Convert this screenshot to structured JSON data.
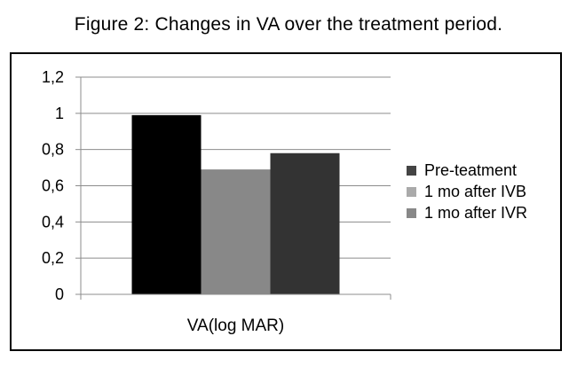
{
  "caption": "Figure 2: Changes in VA over the treatment period.",
  "chart_data": {
    "type": "bar",
    "categories": [
      "VA(log MAR)"
    ],
    "series": [
      {
        "name": "Pre-teatment",
        "values": [
          0.99
        ],
        "bar_color": "#000000",
        "legend_color": "#444444"
      },
      {
        "name": "1 mo after IVB",
        "values": [
          0.69
        ],
        "bar_color": "#888888",
        "legend_color": "#aaaaaa"
      },
      {
        "name": "1 mo after IVR",
        "values": [
          0.78
        ],
        "bar_color": "#333333",
        "legend_color": "#888888"
      }
    ],
    "yticks": [
      "0",
      "0,2",
      "0,4",
      "0,6",
      "0,8",
      "1",
      "1,2"
    ],
    "ylim": [
      0,
      1.2
    ],
    "grid": true,
    "legend_position": "right"
  }
}
